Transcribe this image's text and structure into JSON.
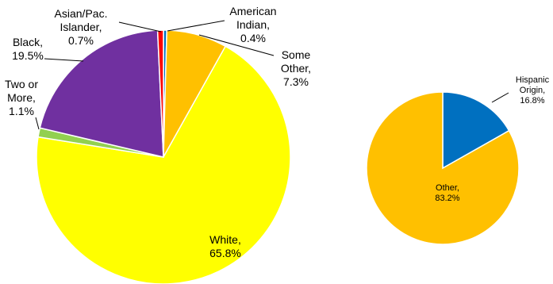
{
  "chart_data": [
    {
      "type": "pie",
      "title": "",
      "slices": [
        {
          "label_lines": [
            "American",
            "Indian,",
            "0.4%"
          ],
          "value": 0.4,
          "color": "#0070C0"
        },
        {
          "label_lines": [
            "Some",
            "Other,",
            "7.3%"
          ],
          "value": 7.3,
          "color": "#FFC000"
        },
        {
          "label_lines": [
            "White,",
            "65.8%"
          ],
          "value": 65.8,
          "color": "#FFFF00"
        },
        {
          "label_lines": [
            "Two or",
            "More,",
            "1.1%"
          ],
          "value": 1.1,
          "color": "#92D050"
        },
        {
          "label_lines": [
            "Black,",
            "19.5%"
          ],
          "value": 19.5,
          "color": "#7030A0"
        },
        {
          "label_lines": [
            "Asian/Pac.",
            "Islander,",
            "0.7%"
          ],
          "value": 0.7,
          "color": "#FF0000"
        }
      ]
    },
    {
      "type": "pie",
      "title": "",
      "slices": [
        {
          "label_lines": [
            "Hispanic",
            "Origin,",
            "16.8%"
          ],
          "value": 16.8,
          "color": "#0070C0"
        },
        {
          "label_lines": [
            "Other,",
            "83.2%"
          ],
          "value": 83.2,
          "color": "#FFC000"
        }
      ]
    }
  ]
}
